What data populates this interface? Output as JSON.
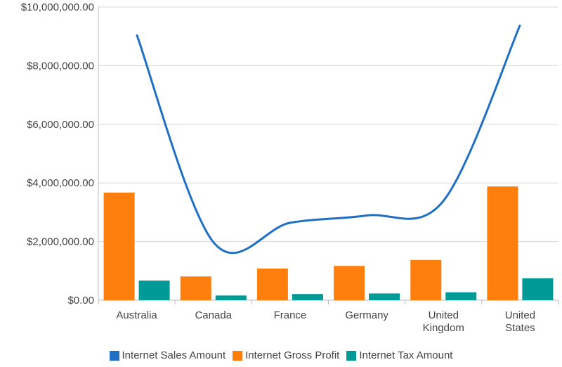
{
  "chart_data": {
    "type": "bar",
    "categories": [
      "Australia",
      "Canada",
      "France",
      "Germany",
      "United Kingdom",
      "United States"
    ],
    "category_labels": [
      [
        "Australia"
      ],
      [
        "Canada"
      ],
      [
        "France"
      ],
      [
        "Germany"
      ],
      [
        "United",
        "Kingdom"
      ],
      [
        "United",
        "States"
      ]
    ],
    "ylim": [
      0,
      10000000
    ],
    "yticks": [
      "$0.00",
      "$2,000,000.00",
      "$4,000,000.00",
      "$6,000,000.00",
      "$8,000,000.00",
      "$10,000,000.00"
    ],
    "ytick_values": [
      0,
      2000000,
      4000000,
      6000000,
      8000000,
      10000000
    ],
    "grid": true,
    "legend_position": "bottom",
    "series": [
      {
        "name": "Internet Sales Amount",
        "type": "line",
        "smooth": true,
        "color": "#1f6fc5",
        "values": [
          9060000,
          1980000,
          2640000,
          2890000,
          3390000,
          9390000
        ]
      },
      {
        "name": "Internet Gross Profit",
        "type": "bar",
        "color": "#ff7f0e",
        "values": [
          3670000,
          810000,
          1080000,
          1170000,
          1370000,
          3880000
        ]
      },
      {
        "name": "Internet Tax Amount",
        "type": "bar",
        "color": "#009a96",
        "values": [
          670000,
          160000,
          210000,
          230000,
          270000,
          750000
        ]
      }
    ]
  }
}
